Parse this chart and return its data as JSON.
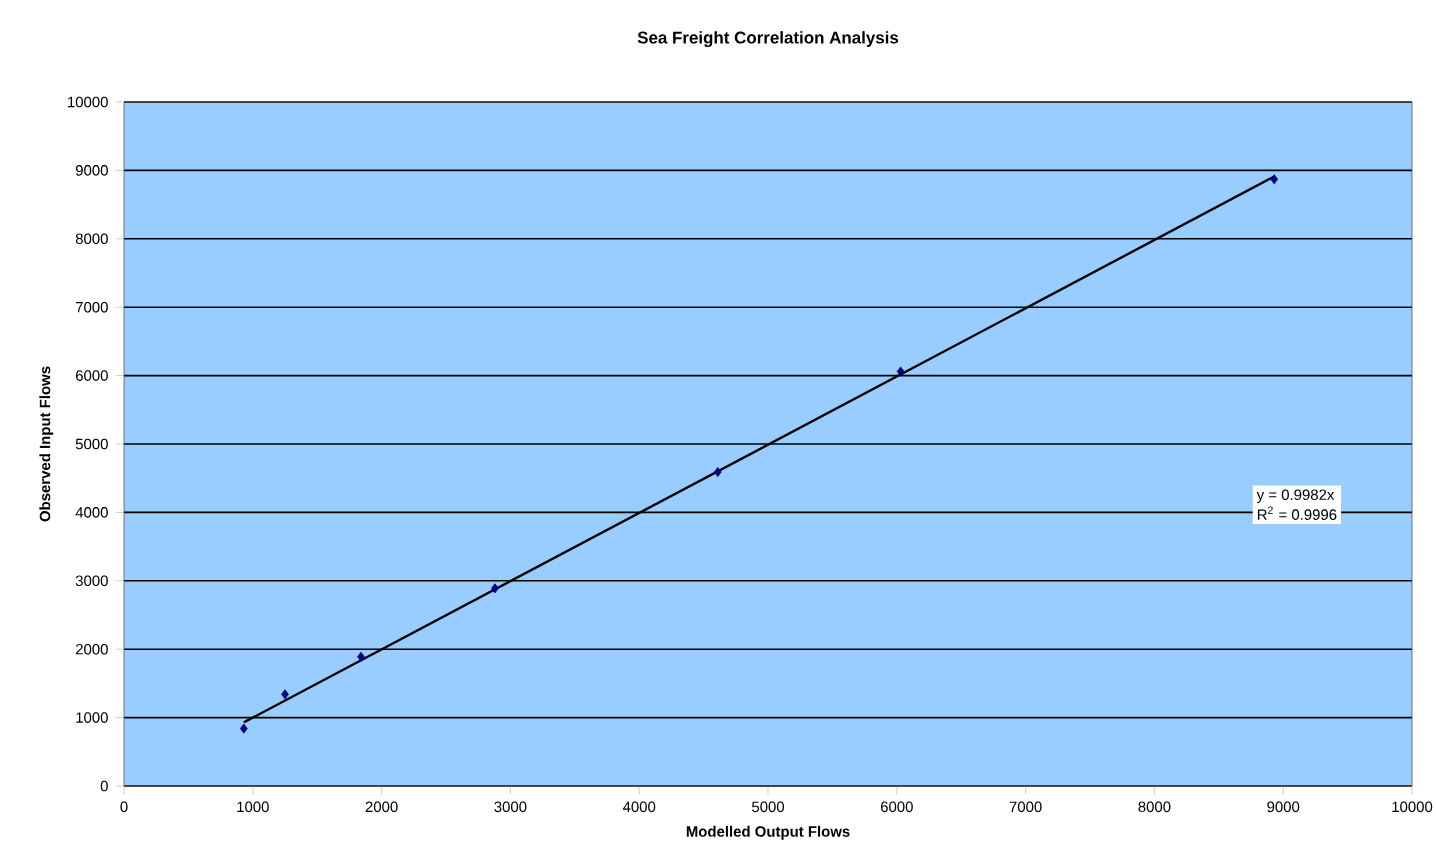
{
  "chart_data": {
    "type": "scatter",
    "title": "Sea Freight Correlation Analysis",
    "xlabel": "Modelled Output Flows",
    "ylabel": "Observed Input Flows",
    "series": [
      {
        "color": "#000080",
        "marker": "diamond",
        "x": [
          930,
          1250,
          1840,
          2880,
          4610,
          6030,
          8930
        ],
        "values": [
          840,
          1340,
          1890,
          2890,
          4590,
          6060,
          8870
        ]
      },
      {
        "type": "line",
        "color": "#000000",
        "marker": "none",
        "x": [
          930,
          8930
        ],
        "values": [
          930,
          8910
        ]
      }
    ],
    "annotations": [
      "y = 0.9982x",
      "R$^{2}$ = 0.9996"
    ],
    "xlim": [
      0,
      10000
    ],
    "ylim": [
      0,
      10000
    ],
    "xticks": [
      0,
      1000,
      2000,
      3000,
      4000,
      5000,
      6000,
      7000,
      8000,
      9000,
      10000
    ],
    "yticks": [
      0,
      1000,
      2000,
      3000,
      4000,
      5000,
      6000,
      7000,
      8000,
      9000,
      10000
    ],
    "grid": "y"
  }
}
